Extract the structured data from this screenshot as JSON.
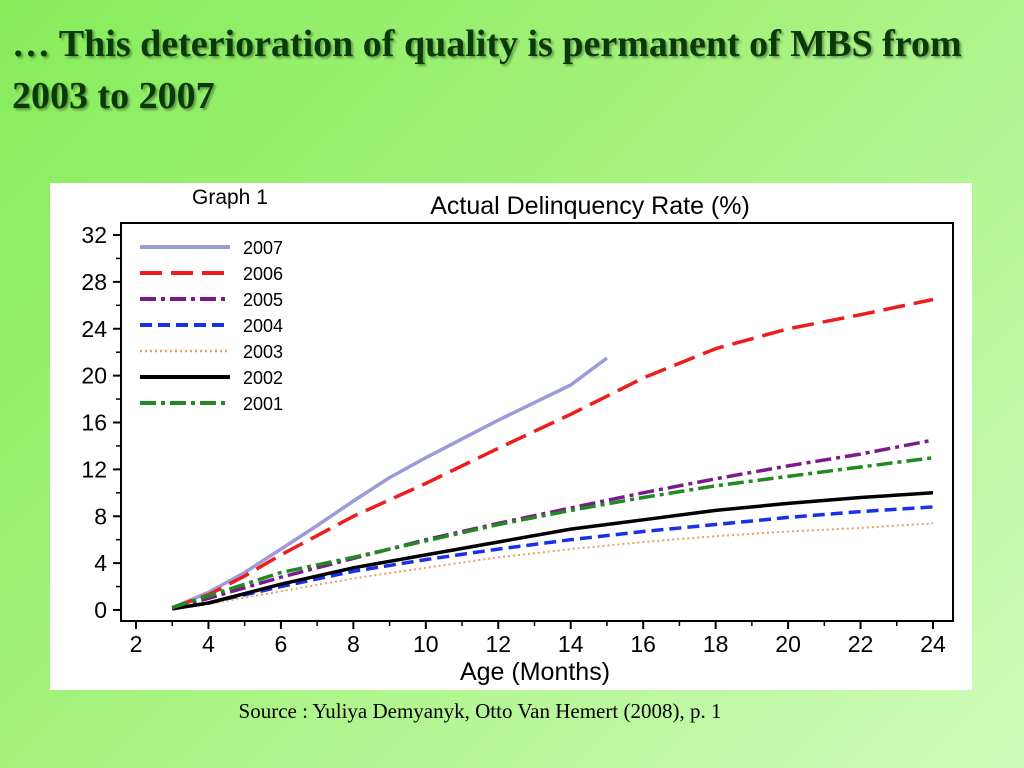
{
  "slide": {
    "title": "… This deterioration of quality is permanent of MBS from 2003 to 2007",
    "graph_label": "Graph 1",
    "source": "Source : Yuliya Demyanyk, Otto Van Hemert (2008), p. 1"
  },
  "chart_data": {
    "type": "line",
    "title": "Actual Delinquency Rate (%)",
    "xlabel": "Age (Months)",
    "ylabel": "",
    "xlim": [
      2,
      24
    ],
    "ylim": [
      0,
      32
    ],
    "xticks": [
      2,
      4,
      6,
      8,
      10,
      12,
      14,
      16,
      18,
      20,
      22,
      24
    ],
    "yticks": [
      0,
      4,
      8,
      12,
      16,
      20,
      24,
      28,
      32
    ],
    "grid": false,
    "legend_position": "top-left",
    "series": [
      {
        "name": "2007",
        "color": "#9b9bdc",
        "style": "solid",
        "x": [
          3,
          4,
          5,
          6,
          7,
          8,
          9,
          10,
          11,
          12,
          13,
          14,
          15
        ],
        "y": [
          0.2,
          1.5,
          3.2,
          5.2,
          7.2,
          9.3,
          11.3,
          13.0,
          14.6,
          16.2,
          17.7,
          19.2,
          21.5
        ]
      },
      {
        "name": "2006",
        "color": "#ee1c1c",
        "style": "longdash",
        "x": [
          3,
          4,
          5,
          6,
          8,
          10,
          12,
          14,
          16,
          18,
          20,
          22,
          24
        ],
        "y": [
          0.2,
          1.3,
          2.9,
          4.7,
          8.0,
          10.8,
          13.8,
          16.7,
          19.8,
          22.3,
          24.0,
          25.2,
          26.5
        ]
      },
      {
        "name": "2005",
        "color": "#7a1a8c",
        "style": "dashdot",
        "x": [
          3,
          4,
          6,
          8,
          10,
          12,
          14,
          16,
          18,
          20,
          22,
          24
        ],
        "y": [
          0.2,
          1.0,
          2.8,
          4.4,
          6.0,
          7.4,
          8.7,
          10.0,
          11.2,
          12.3,
          13.3,
          14.5
        ]
      },
      {
        "name": "2004",
        "color": "#1a2fe8",
        "style": "dash",
        "x": [
          3,
          4,
          6,
          8,
          10,
          12,
          14,
          16,
          18,
          20,
          22,
          24
        ],
        "y": [
          0.1,
          0.6,
          2.0,
          3.3,
          4.3,
          5.2,
          6.0,
          6.7,
          7.3,
          7.9,
          8.4,
          8.8
        ]
      },
      {
        "name": "2003",
        "color": "#e8a060",
        "style": "dotted",
        "x": [
          3,
          4,
          6,
          8,
          10,
          12,
          14,
          16,
          18,
          20,
          22,
          24
        ],
        "y": [
          0.1,
          0.5,
          1.6,
          2.7,
          3.6,
          4.5,
          5.2,
          5.8,
          6.3,
          6.7,
          7.0,
          7.4
        ]
      },
      {
        "name": "2002",
        "color": "#000000",
        "style": "solid",
        "x": [
          3,
          4,
          6,
          8,
          10,
          12,
          14,
          16,
          18,
          20,
          22,
          24
        ],
        "y": [
          0.1,
          0.6,
          2.2,
          3.6,
          4.7,
          5.8,
          6.9,
          7.7,
          8.5,
          9.1,
          9.6,
          10.0
        ]
      },
      {
        "name": "2001",
        "color": "#1f8a1f",
        "style": "dashdot",
        "x": [
          3,
          4,
          6,
          8,
          10,
          12,
          14,
          16,
          18,
          20,
          22,
          24
        ],
        "y": [
          0.2,
          1.2,
          3.2,
          4.5,
          5.9,
          7.3,
          8.5,
          9.6,
          10.6,
          11.4,
          12.2,
          13.0
        ]
      }
    ]
  }
}
